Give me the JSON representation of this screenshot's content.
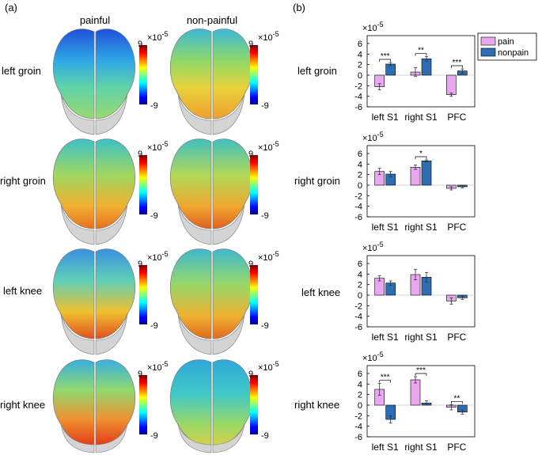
{
  "panels": {
    "a": "(a)",
    "b": "(b)"
  },
  "columns": [
    "painful",
    "non-painful"
  ],
  "rows": [
    "left groin",
    "right groin",
    "left knee",
    "right knee"
  ],
  "colorbar": {
    "exponent_prefix": "×10",
    "exponent": "-5",
    "max_label": "9",
    "min_label": "-9"
  },
  "legend": {
    "items": [
      {
        "label": "pain",
        "color": "#e7a8ee"
      },
      {
        "label": "nonpain",
        "color": "#2e6db3"
      }
    ]
  },
  "axis_exponent": "×10",
  "axis_exponent_power": "-5",
  "chart_data": [
    {
      "type": "bar",
      "row": "left groin",
      "categories": [
        "left S1",
        "right S1",
        "PFC"
      ],
      "series": [
        {
          "name": "pain",
          "values": [
            -2.2,
            0.6,
            -3.7
          ],
          "errors": [
            0.6,
            0.8,
            0.3
          ]
        },
        {
          "name": "nonpain",
          "values": [
            2.1,
            3.1,
            0.8
          ],
          "errors": [
            0.3,
            0.4,
            0.4
          ]
        }
      ],
      "yticks": [
        "6",
        "4",
        "2",
        "0",
        "-2",
        "-4",
        "-6"
      ],
      "ylim": [
        -6,
        7.5
      ],
      "significance": [
        {
          "category": "left S1",
          "text": "***"
        },
        {
          "category": "right S1",
          "text": "**"
        },
        {
          "category": "PFC",
          "text": "***"
        }
      ]
    },
    {
      "type": "bar",
      "row": "right groin",
      "categories": [
        "left S1",
        "right S1",
        "PFC"
      ],
      "series": [
        {
          "name": "pain",
          "values": [
            2.6,
            3.4,
            -0.6
          ],
          "errors": [
            0.6,
            0.4,
            0.3
          ]
        },
        {
          "name": "nonpain",
          "values": [
            2.1,
            4.6,
            -0.3
          ],
          "errors": [
            0.5,
            0.2,
            0.2
          ]
        }
      ],
      "yticks": [
        "6",
        "4",
        "2",
        "0",
        "-2",
        "-4",
        "-6"
      ],
      "ylim": [
        -6,
        7.5
      ],
      "significance": [
        {
          "category": "right S1",
          "text": "*"
        }
      ]
    },
    {
      "type": "bar",
      "row": "left knee",
      "categories": [
        "left S1",
        "right S1",
        "PFC"
      ],
      "series": [
        {
          "name": "pain",
          "values": [
            3.2,
            3.9,
            -1.1
          ],
          "errors": [
            0.5,
            1.0,
            0.6
          ]
        },
        {
          "name": "nonpain",
          "values": [
            2.3,
            3.4,
            -0.5
          ],
          "errors": [
            0.4,
            0.9,
            0.3
          ]
        }
      ],
      "yticks": [
        "6",
        "4",
        "2",
        "0",
        "-2",
        "-4",
        "-6"
      ],
      "ylim": [
        -6,
        7.5
      ],
      "significance": []
    },
    {
      "type": "bar",
      "row": "right knee",
      "categories": [
        "left S1",
        "right S1",
        "PFC"
      ],
      "series": [
        {
          "name": "pain",
          "values": [
            3.0,
            4.8,
            -0.4
          ],
          "errors": [
            1.1,
            0.6,
            0.5
          ]
        },
        {
          "name": "nonpain",
          "values": [
            -2.7,
            0.4,
            -1.3
          ],
          "errors": [
            0.7,
            0.4,
            0.4
          ]
        }
      ],
      "yticks": [
        "6",
        "4",
        "2",
        "0",
        "-2",
        "-4",
        "-6"
      ],
      "ylim": [
        -6,
        7.5
      ],
      "significance": [
        {
          "category": "left S1",
          "text": "***"
        },
        {
          "category": "right S1",
          "text": "***"
        },
        {
          "category": "PFC",
          "text": "**"
        }
      ]
    }
  ]
}
